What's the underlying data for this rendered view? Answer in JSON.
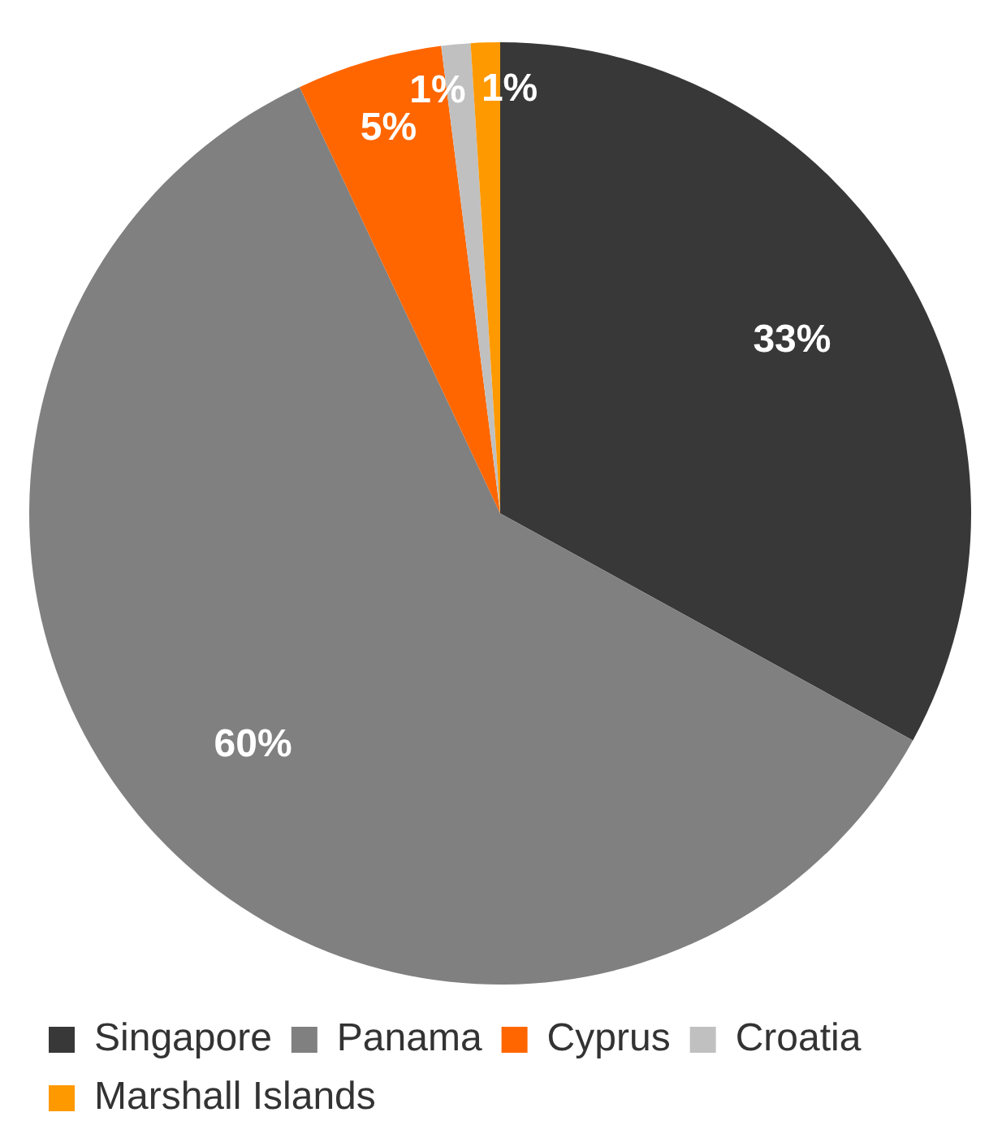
{
  "chart_data": {
    "type": "pie",
    "categories": [
      "Singapore",
      "Panama",
      "Cyprus",
      "Croatia",
      "Marshall Islands"
    ],
    "values": [
      33,
      60,
      5,
      1,
      1
    ],
    "colors": [
      "#383838",
      "#808080",
      "#ff6600",
      "#c0c0c0",
      "#ff9900"
    ],
    "value_labels": [
      "33%",
      "60%",
      "5%",
      "1%",
      "1%"
    ],
    "legend": "bottom"
  }
}
